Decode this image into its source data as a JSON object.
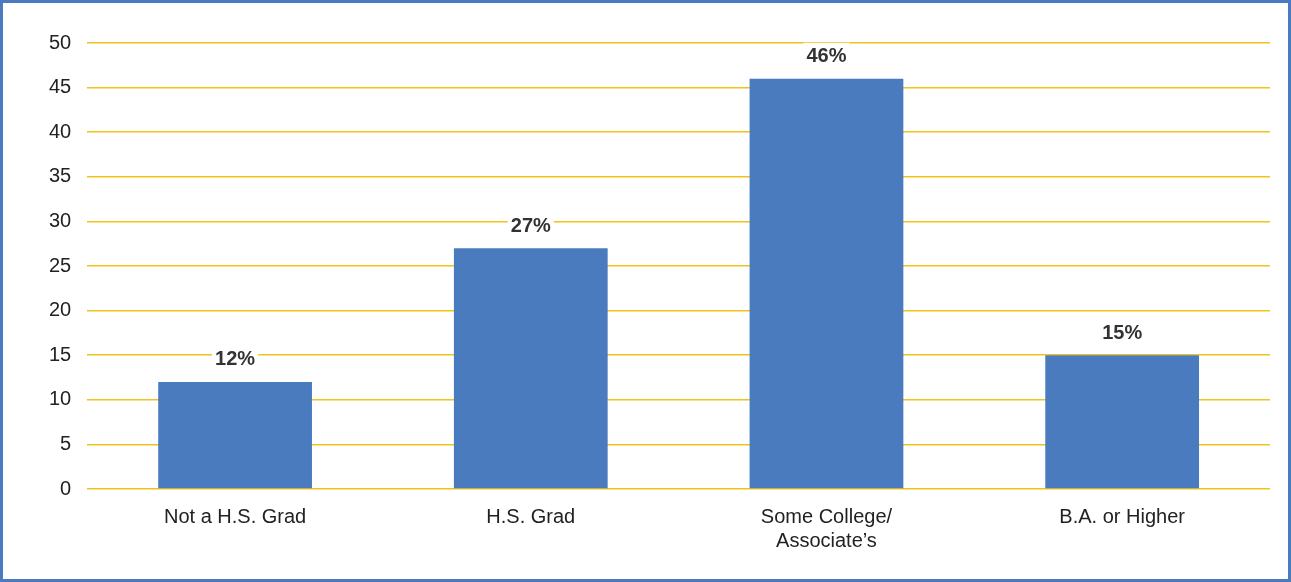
{
  "chart_data": {
    "type": "bar",
    "categories": [
      "Not a H.S. Grad",
      "H.S. Grad",
      "Some College/\nAssociate’s",
      "B.A. or Higher"
    ],
    "values": [
      12,
      27,
      46,
      15
    ],
    "value_labels": [
      "12%",
      "27%",
      "46%",
      "15%"
    ],
    "color": "#4a7bbf",
    "ylim": [
      0,
      50
    ],
    "yticks": [
      0,
      5,
      10,
      15,
      20,
      25,
      30,
      35,
      40,
      45,
      50
    ],
    "grid": "y"
  }
}
